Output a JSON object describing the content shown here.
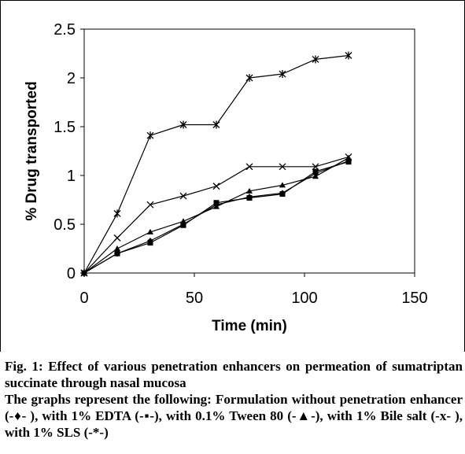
{
  "chart_data": {
    "type": "line",
    "xlabel": "Time (min)",
    "ylabel": "% Drug transported",
    "xlim": [
      0,
      150
    ],
    "ylim": [
      0,
      2.5
    ],
    "xticks": [
      0,
      50,
      100,
      150
    ],
    "yticks": [
      0,
      0.5,
      1,
      1.5,
      2,
      2.5
    ],
    "ytick_labels": [
      "0",
      "0.5",
      "1",
      "1.5",
      "2",
      "2.5"
    ],
    "grid": false,
    "series": [
      {
        "marker": "diamond",
        "x": [
          0,
          15,
          30,
          45,
          60,
          75,
          90,
          105,
          120
        ],
        "y": [
          0,
          0.2,
          0.33,
          0.5,
          0.7,
          0.78,
          0.82,
          1.02,
          1.15
        ]
      },
      {
        "marker": "square",
        "x": [
          0,
          15,
          30,
          45,
          60,
          75,
          90,
          105,
          120
        ],
        "y": [
          0,
          0.2,
          0.31,
          0.49,
          0.72,
          0.77,
          0.81,
          1.04,
          1.14
        ]
      },
      {
        "marker": "triangle",
        "x": [
          0,
          15,
          30,
          45,
          60,
          75,
          90,
          105,
          120
        ],
        "y": [
          0,
          0.25,
          0.42,
          0.53,
          0.68,
          0.84,
          0.9,
          0.99,
          1.18
        ]
      },
      {
        "marker": "x",
        "x": [
          0,
          15,
          30,
          45,
          60,
          75,
          90,
          105,
          120
        ],
        "y": [
          0,
          0.36,
          0.7,
          0.79,
          0.89,
          1.09,
          1.09,
          1.09,
          1.19
        ]
      },
      {
        "marker": "asterisk",
        "x": [
          0,
          15,
          30,
          45,
          60,
          75,
          90,
          105,
          120
        ],
        "y": [
          0,
          0.61,
          1.41,
          1.52,
          1.52,
          2.0,
          2.04,
          2.19,
          2.23
        ]
      }
    ]
  },
  "caption": {
    "line1": "Fig. 1: Effect of various penetration enhancers on permeation of sumatriptan succinate through nasal mucosa",
    "line2": "The graphs represent the following: Formulation without penetration enhancer (-♦- ), with 1% EDTA (-▪-), with 0.1% Tween 80 (-▲-), with 1% Bile salt (-x- ), with 1% SLS (-*-)"
  }
}
